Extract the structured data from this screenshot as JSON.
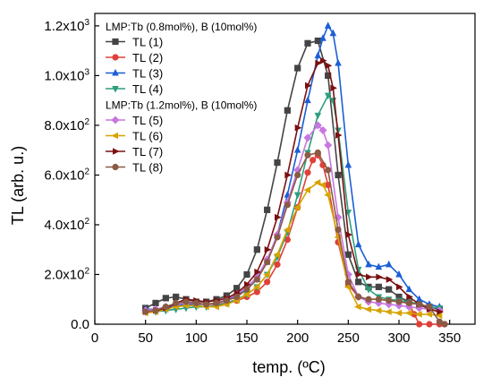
{
  "chart_data": {
    "type": "line",
    "xlabel": "temp. (ºC)",
    "ylabel": "TL (arb. u.)",
    "xlim": [
      0,
      375
    ],
    "ylim": [
      0,
      1250
    ],
    "x_ticks": [
      0,
      50,
      100,
      150,
      200,
      250,
      300,
      350
    ],
    "y_ticks": [
      0,
      200,
      400,
      600,
      800,
      1000,
      1200
    ],
    "y_tick_labels": [
      "0.0",
      "2.0x10",
      "4.0x10",
      "6.0x10",
      "8.0x10",
      "1.0x10",
      "1.2x10"
    ],
    "y_tick_exponents": [
      "",
      "2",
      "2",
      "2",
      "2",
      "3",
      "3"
    ],
    "grid": false,
    "legend_position": "top-left",
    "legend_groups": [
      {
        "title": "LMP:Tb (0.8mol%), B (10mol%)",
        "series_indices": [
          0,
          1,
          2,
          3
        ]
      },
      {
        "title": "LMP:Tb (1.2mol%), B (10mol%)",
        "series_indices": [
          4,
          5,
          6,
          7
        ]
      }
    ],
    "series": [
      {
        "name": "TL (1)",
        "color": "#444444",
        "marker": "square",
        "x": [
          50,
          60,
          70,
          80,
          90,
          100,
          110,
          120,
          130,
          140,
          150,
          160,
          170,
          180,
          190,
          200,
          210,
          220,
          230,
          240,
          250,
          260,
          270,
          280,
          290,
          300,
          310,
          320,
          330,
          340
        ],
        "y": [
          65,
          85,
          105,
          110,
          100,
          90,
          90,
          100,
          115,
          145,
          200,
          300,
          460,
          650,
          860,
          1030,
          1130,
          1140,
          1000,
          600,
          280,
          170,
          150,
          150,
          140,
          110,
          90,
          80,
          70,
          60
        ]
      },
      {
        "name": "TL (2)",
        "color": "#e0403a",
        "marker": "circle",
        "x": [
          50,
          60,
          70,
          80,
          90,
          100,
          110,
          120,
          130,
          140,
          150,
          160,
          170,
          180,
          190,
          200,
          210,
          215,
          220,
          225,
          230,
          240,
          250,
          260,
          270,
          280,
          290,
          300,
          310,
          315,
          320,
          330,
          340,
          345
        ],
        "y": [
          50,
          55,
          65,
          80,
          90,
          85,
          80,
          80,
          85,
          95,
          110,
          130,
          170,
          240,
          340,
          470,
          610,
          660,
          680,
          640,
          560,
          330,
          160,
          110,
          100,
          100,
          95,
          90,
          85,
          40,
          0,
          0,
          0,
          0
        ]
      },
      {
        "name": "TL (3)",
        "color": "#1a5fd6",
        "marker": "triangle-up",
        "x": [
          50,
          60,
          70,
          80,
          90,
          100,
          110,
          120,
          130,
          140,
          150,
          160,
          170,
          180,
          190,
          200,
          210,
          220,
          225,
          230,
          235,
          240,
          250,
          260,
          270,
          280,
          290,
          300,
          310,
          320,
          330,
          340
        ],
        "y": [
          60,
          60,
          65,
          75,
          80,
          80,
          80,
          85,
          95,
          115,
          140,
          180,
          250,
          360,
          520,
          700,
          900,
          1080,
          1150,
          1200,
          1170,
          1050,
          640,
          320,
          240,
          230,
          240,
          200,
          140,
          100,
          80,
          70
        ]
      },
      {
        "name": "TL (4)",
        "color": "#2e9e7e",
        "marker": "triangle-down",
        "x": [
          50,
          60,
          70,
          80,
          90,
          100,
          110,
          120,
          130,
          140,
          150,
          160,
          170,
          180,
          190,
          200,
          210,
          220,
          230,
          235,
          240,
          250,
          260,
          270,
          280,
          290,
          300,
          310,
          320,
          330,
          340
        ],
        "y": [
          50,
          50,
          55,
          60,
          65,
          70,
          70,
          75,
          85,
          100,
          120,
          150,
          200,
          270,
          370,
          520,
          690,
          840,
          920,
          900,
          780,
          450,
          220,
          140,
          110,
          100,
          95,
          90,
          80,
          70,
          65
        ]
      },
      {
        "name": "TL (5)",
        "color": "#c877e0",
        "marker": "diamond",
        "x": [
          50,
          60,
          70,
          80,
          90,
          100,
          110,
          120,
          130,
          140,
          150,
          160,
          170,
          180,
          190,
          200,
          210,
          220,
          225,
          230,
          240,
          250,
          260,
          270,
          280,
          290,
          300,
          310,
          320,
          330,
          340
        ],
        "y": [
          55,
          60,
          70,
          80,
          85,
          85,
          80,
          85,
          100,
          120,
          150,
          190,
          260,
          360,
          490,
          620,
          750,
          800,
          780,
          720,
          430,
          200,
          110,
          90,
          85,
          80,
          75,
          70,
          65,
          60,
          55
        ]
      },
      {
        "name": "TL (6)",
        "color": "#d6a300",
        "marker": "triangle-left",
        "x": [
          50,
          60,
          70,
          80,
          90,
          100,
          110,
          120,
          130,
          140,
          150,
          160,
          170,
          180,
          190,
          200,
          210,
          220,
          225,
          230,
          240,
          250,
          260,
          270,
          280,
          290,
          300,
          310,
          320,
          330,
          340
        ],
        "y": [
          45,
          50,
          60,
          70,
          75,
          75,
          70,
          70,
          80,
          95,
          120,
          150,
          200,
          280,
          380,
          470,
          540,
          570,
          560,
          520,
          350,
          150,
          70,
          60,
          55,
          50,
          45,
          45,
          40,
          40,
          35
        ]
      },
      {
        "name": "TL (7)",
        "color": "#7a1010",
        "marker": "triangle-right",
        "x": [
          50,
          60,
          70,
          80,
          90,
          100,
          110,
          120,
          130,
          140,
          150,
          160,
          170,
          180,
          190,
          200,
          210,
          220,
          225,
          230,
          235,
          240,
          250,
          260,
          270,
          280,
          290,
          300,
          310,
          320,
          330,
          340
        ],
        "y": [
          50,
          55,
          65,
          85,
          100,
          95,
          90,
          95,
          105,
          125,
          160,
          210,
          300,
          430,
          600,
          790,
          960,
          1050,
          1060,
          1040,
          950,
          760,
          360,
          200,
          190,
          190,
          180,
          150,
          110,
          80,
          60,
          50
        ]
      },
      {
        "name": "TL (8)",
        "color": "#8a5a44",
        "marker": "circle",
        "x": [
          50,
          60,
          70,
          80,
          90,
          100,
          110,
          120,
          130,
          140,
          150,
          160,
          170,
          180,
          190,
          200,
          210,
          220,
          230,
          240,
          250,
          260,
          270,
          280,
          290,
          300,
          310,
          320,
          330,
          340,
          345
        ],
        "y": [
          50,
          55,
          70,
          85,
          90,
          85,
          80,
          85,
          95,
          110,
          140,
          180,
          250,
          350,
          480,
          600,
          680,
          690,
          620,
          380,
          170,
          110,
          100,
          100,
          95,
          90,
          85,
          80,
          70,
          10,
          0
        ]
      }
    ]
  }
}
